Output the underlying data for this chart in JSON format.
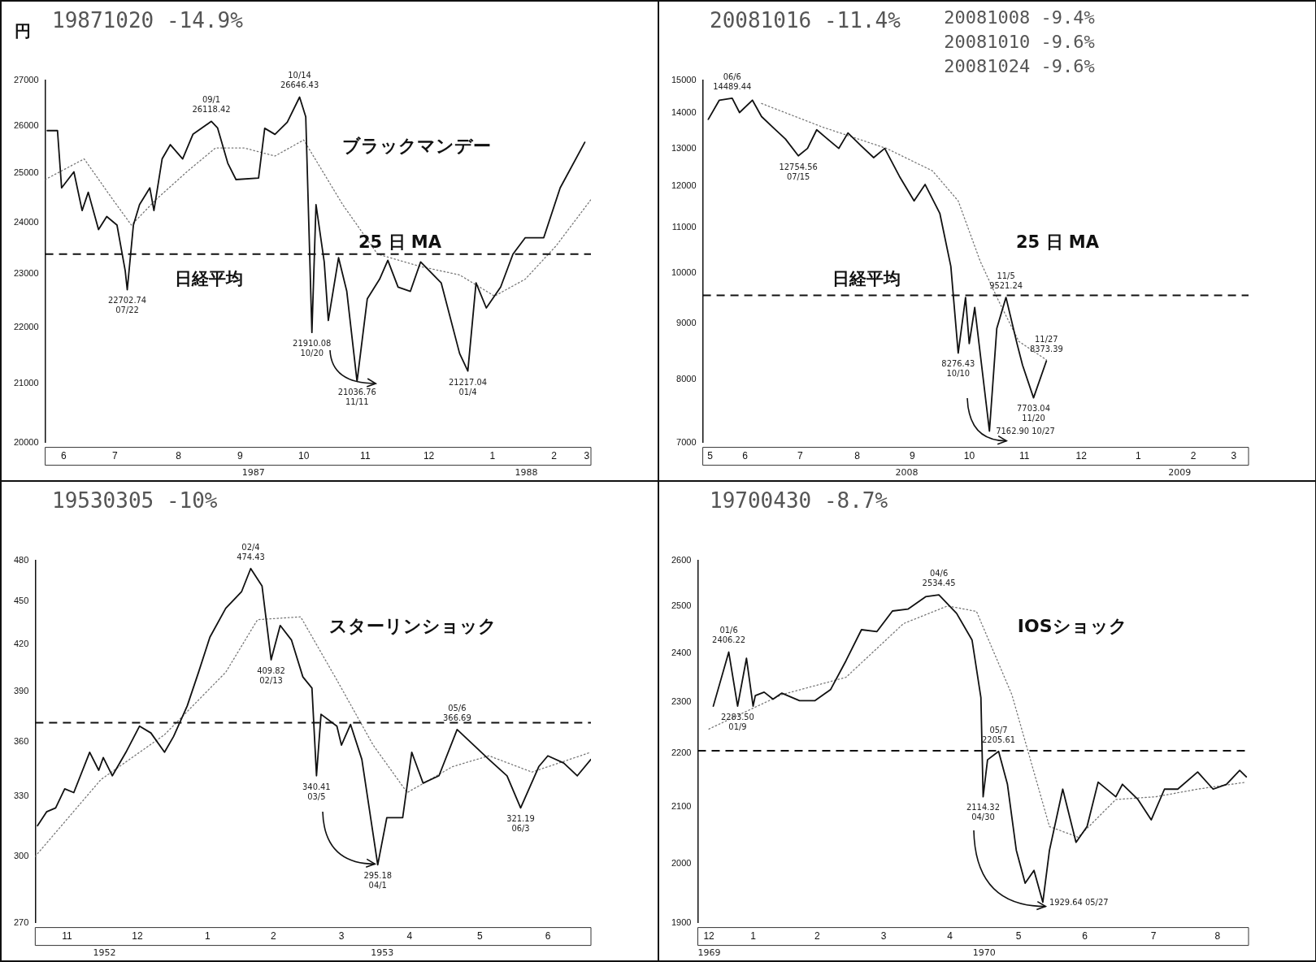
{
  "chart_data": [
    {
      "type": "line",
      "title": "19871020 -14.9%",
      "subtitle": "ブラックマンデー",
      "ylabel": "円",
      "log": true,
      "ylim": [
        20000,
        27000
      ],
      "yticks": [
        20000,
        21000,
        22000,
        23000,
        24000,
        25000,
        26000,
        27000
      ],
      "xlim": [
        "1987-06-12",
        "1988-03-04"
      ],
      "xticks": [
        {
          "value": "1987-06-21",
          "label": "6"
        },
        {
          "value": "1987-07-16",
          "label": "7"
        },
        {
          "value": "1987-08-16",
          "label": "8"
        },
        {
          "value": "1987-09-15",
          "label": "9"
        },
        {
          "value": "1987-10-16",
          "label": "10"
        },
        {
          "value": "1987-11-15",
          "label": "11"
        },
        {
          "value": "1987-12-16",
          "label": "12"
        },
        {
          "value": "1988-01-16",
          "label": "1"
        },
        {
          "value": "1988-02-15",
          "label": "2"
        },
        {
          "value": "1988-03-02",
          "label": "3"
        }
      ],
      "grid": false,
      "legend": false,
      "marker": "none",
      "series": [
        {
          "name": "日経平均",
          "color": "#111111",
          "line_style": "solid",
          "x": [
            "1987-06-13",
            "1987-06-18",
            "1987-06-20",
            "1987-06-26",
            "1987-06-30",
            "1987-07-03",
            "1987-07-08",
            "1987-07-12",
            "1987-07-17",
            "1987-07-21",
            "1987-07-22",
            "1987-07-25",
            "1987-07-28",
            "1987-08-02",
            "1987-08-04",
            "1987-08-08",
            "1987-08-12",
            "1987-08-18",
            "1987-08-23",
            "1987-09-01",
            "1987-09-04",
            "1987-09-09",
            "1987-09-13",
            "1987-09-24",
            "1987-09-27",
            "1987-10-02",
            "1987-10-08",
            "1987-10-14",
            "1987-10-17",
            "1987-10-20",
            "1987-10-22",
            "1987-10-26",
            "1987-10-28",
            "1987-11-02",
            "1987-11-06",
            "1987-11-11",
            "1987-11-16",
            "1987-11-22",
            "1987-11-26",
            "1987-12-01",
            "1987-12-07",
            "1987-12-12",
            "1987-12-22",
            "1987-12-31",
            "1988-01-04",
            "1988-01-08",
            "1988-01-13",
            "1988-01-20",
            "1988-01-26",
            "1988-02-01",
            "1988-02-10",
            "1988-02-18",
            "1988-03-01"
          ],
          "values": [
            25900,
            25900,
            24700,
            25030,
            24240,
            24610,
            23860,
            24120,
            23950,
            23060,
            22700,
            23950,
            24360,
            24700,
            24240,
            25300,
            25600,
            25300,
            25820,
            26100,
            25960,
            25210,
            24870,
            24900,
            25950,
            25820,
            26080,
            26630,
            26200,
            21910,
            24360,
            23230,
            22130,
            23310,
            22670,
            21040,
            22530,
            22900,
            23260,
            22750,
            22670,
            23230,
            22830,
            21530,
            21220,
            22830,
            22360,
            22750,
            23380,
            23700,
            23700,
            24700,
            25650
          ]
        },
        {
          "name": "25 日 MA",
          "color": "#777777",
          "line_style": "dotted",
          "x": [
            "1987-06-12",
            "1987-07-01",
            "1987-07-15",
            "1987-07-24",
            "1987-08-05",
            "1987-08-20",
            "1987-09-03",
            "1987-09-17",
            "1987-10-02",
            "1987-10-16",
            "1987-11-04",
            "1987-11-21",
            "1987-12-12",
            "1987-12-31",
            "1988-01-17",
            "1988-02-01",
            "1988-02-16",
            "1988-03-04"
          ],
          "values": [
            24870,
            25300,
            24460,
            23950,
            24460,
            25030,
            25530,
            25530,
            25360,
            25700,
            24360,
            23380,
            23140,
            22980,
            22580,
            22900,
            23540,
            24460
          ]
        }
      ],
      "ref_lines": [
        {
          "axis": "y",
          "value": 23380,
          "line_style": "dashed",
          "color": "#111111"
        }
      ],
      "annotations": [
        {
          "text": "10/14 26646.43",
          "x": "1987-10-14",
          "y": 26630
        },
        {
          "text": "21910.08 10/20",
          "x": "1987-10-20",
          "y": 21910
        },
        {
          "text": "21036.76 11/11",
          "x": "1987-11-11",
          "y": 21040
        },
        {
          "text": "21217.04 01/4",
          "x": "1988-01-04",
          "y": 21220
        },
        {
          "text": "22702.74 07/22",
          "x": "1987-07-22",
          "y": 22700
        },
        {
          "text": "09/1 26118.42",
          "x": "1987-09-01",
          "y": 26100
        },
        "1987",
        "1988"
      ]
    },
    {
      "type": "line",
      "title": "20081016 -11.4%",
      "log": true,
      "ylim": [
        7000,
        15000
      ],
      "yticks": [
        7000,
        8000,
        9000,
        10000,
        11000,
        12000,
        13000,
        14000,
        15000
      ],
      "xlim": [
        "2008-05-24",
        "2009-03-17"
      ],
      "xticks": [
        {
          "value": "2008-05-28",
          "label": "5"
        },
        {
          "value": "2008-06-16",
          "label": "6"
        },
        {
          "value": "2008-07-16",
          "label": "7"
        },
        {
          "value": "2008-08-16",
          "label": "8"
        },
        {
          "value": "2008-09-15",
          "label": "9"
        },
        {
          "value": "2008-10-16",
          "label": "10"
        },
        {
          "value": "2008-11-15",
          "label": "11"
        },
        {
          "value": "2008-12-16",
          "label": "12"
        },
        {
          "value": "2009-01-16",
          "label": "1"
        },
        {
          "value": "2009-02-15",
          "label": "2"
        },
        {
          "value": "2009-03-09",
          "label": "3"
        }
      ],
      "grid": false,
      "legend": false,
      "marker": "none",
      "series": [
        {
          "name": "日経平均",
          "color": "#111111",
          "line_style": "solid",
          "x": [
            "2008-05-27",
            "2008-06-02",
            "2008-06-09",
            "2008-06-13",
            "2008-06-20",
            "2008-06-25",
            "2008-07-01",
            "2008-07-08",
            "2008-07-15",
            "2008-07-20",
            "2008-07-25",
            "2008-07-30",
            "2008-08-06",
            "2008-08-11",
            "2008-08-18",
            "2008-08-25",
            "2008-08-31",
            "2008-09-08",
            "2008-09-16",
            "2008-09-22",
            "2008-09-30",
            "2008-10-06",
            "2008-10-10",
            "2008-10-14",
            "2008-10-16",
            "2008-10-19",
            "2008-10-27",
            "2008-10-31",
            "2008-11-05",
            "2008-11-11",
            "2008-11-14",
            "2008-11-20",
            "2008-11-27"
          ],
          "values": [
            13820,
            14390,
            14450,
            14020,
            14390,
            13900,
            13600,
            13260,
            12800,
            13000,
            13520,
            13300,
            13000,
            13430,
            13080,
            12750,
            13000,
            12260,
            11640,
            12050,
            11340,
            10140,
            8450,
            9500,
            8620,
            9300,
            7170,
            8900,
            9500,
            8620,
            8240,
            7690,
            8310
          ]
        },
        {
          "name": "25 日 MA",
          "color": "#777777",
          "line_style": "dotted",
          "x": [
            "2008-06-25",
            "2008-07-28",
            "2008-09-01",
            "2008-09-26",
            "2008-10-10",
            "2008-10-22",
            "2008-11-01",
            "2008-11-12",
            "2008-11-27"
          ],
          "values": [
            14290,
            13600,
            13000,
            12400,
            11640,
            10250,
            9430,
            8660,
            8330
          ]
        }
      ],
      "ref_lines": [
        {
          "axis": "y",
          "value": 9540,
          "line_style": "dashed",
          "color": "#111111"
        }
      ],
      "annotations": [
        "20081008 -9.4%",
        "20081010 -9.6%",
        "20081024 -9.6%",
        {
          "text": "06/6 14489.44",
          "x": "2008-06-09",
          "y": 14450
        },
        {
          "text": "7162.90 10/27",
          "x": "2008-10-27",
          "y": 7170
        },
        {
          "text": "11/5 9521.24",
          "x": "2008-11-05",
          "y": 9500
        },
        {
          "text": "8276.43 10/10",
          "x": "2008-10-10",
          "y": 8450
        },
        {
          "text": "7703.04 11/20",
          "x": "2008-11-20",
          "y": 7690
        },
        {
          "text": "12754.56 07/15",
          "x": "2008-07-15",
          "y": 12800
        },
        {
          "text": "11/27 8373.39",
          "x": "2008-11-27",
          "y": 8310
        },
        "2008",
        "2009"
      ]
    },
    {
      "type": "line",
      "title": "19530305 -10%",
      "subtitle": "スターリンショック",
      "log": true,
      "ylim": [
        270,
        480
      ],
      "yticks": [
        270,
        300,
        330,
        360,
        390,
        420,
        450,
        480
      ],
      "xlim": [
        "1952-11-01",
        "1953-07-04"
      ],
      "xticks": [
        {
          "value": "1952-11-15",
          "label": "11"
        },
        {
          "value": "1952-12-16",
          "label": "12"
        },
        {
          "value": "1953-01-16",
          "label": "1"
        },
        {
          "value": "1953-02-14",
          "label": "2"
        },
        {
          "value": "1953-03-16",
          "label": "3"
        },
        {
          "value": "1953-04-15",
          "label": "4"
        },
        {
          "value": "1953-05-16",
          "label": "5"
        },
        {
          "value": "1953-06-15",
          "label": "6"
        }
      ],
      "grid": false,
      "legend": false,
      "marker": "none",
      "series": [
        {
          "color": "#111111",
          "line_style": "solid",
          "x": [
            "1952-11-02",
            "1952-11-06",
            "1952-11-10",
            "1952-11-14",
            "1952-11-18",
            "1952-11-25",
            "1952-11-29",
            "1952-12-01",
            "1952-12-05",
            "1952-12-11",
            "1952-12-17",
            "1952-12-22",
            "1952-12-28",
            "1953-01-01",
            "1953-01-07",
            "1953-01-12",
            "1953-01-17",
            "1953-01-24",
            "1953-01-31",
            "1953-02-04",
            "1953-02-09",
            "1953-02-13",
            "1953-02-17",
            "1953-02-22",
            "1953-02-27",
            "1953-03-03",
            "1953-03-05",
            "1953-03-07",
            "1953-03-14",
            "1953-03-16",
            "1953-03-20",
            "1953-03-25",
            "1953-04-01",
            "1953-04-05",
            "1953-04-12",
            "1953-04-16",
            "1953-04-21",
            "1953-04-28",
            "1953-05-06",
            "1953-05-20",
            "1953-05-28",
            "1953-06-03",
            "1953-06-11",
            "1953-06-15",
            "1953-06-22",
            "1953-06-28",
            "1953-07-04"
          ],
          "values": [
            315,
            322,
            324,
            334,
            332,
            354,
            344,
            351,
            341,
            354,
            369,
            365,
            354,
            363,
            381,
            402,
            425,
            445,
            457,
            474,
            461,
            410,
            433,
            423,
            399,
            392,
            341,
            376,
            369,
            358,
            370,
            350,
            296,
            319,
            319,
            354,
            337,
            341,
            367,
            350,
            341,
            324,
            346,
            352,
            348,
            341,
            350
          ]
        },
        {
          "color": "#777777",
          "line_style": "dotted",
          "x": [
            "1952-11-01",
            "1952-11-30",
            "1952-12-28",
            "1953-01-24",
            "1953-02-07",
            "1953-02-26",
            "1953-03-14",
            "1953-03-30",
            "1953-04-14",
            "1953-05-04",
            "1953-05-20",
            "1953-06-08",
            "1953-07-04"
          ],
          "values": [
            300,
            339,
            364,
            402,
            437,
            439,
            397,
            358,
            332,
            346,
            352,
            343,
            354
          ]
        }
      ],
      "ref_lines": [
        {
          "axis": "y",
          "value": 371,
          "line_style": "dashed",
          "color": "#111111"
        }
      ],
      "annotations": [
        {
          "text": "02/4 474.43",
          "x": "1953-02-04",
          "y": 474
        },
        {
          "text": "295.18 04/1",
          "x": "1953-04-01",
          "y": 296
        },
        {
          "text": "340.41 03/5",
          "x": "1953-03-05",
          "y": 341
        },
        {
          "text": "409.82 02/13",
          "x": "1953-02-13",
          "y": 410
        },
        {
          "text": "05/6 366.69",
          "x": "1953-05-06",
          "y": 367
        },
        {
          "text": "321.19 06/3",
          "x": "1953-06-03",
          "y": 324
        },
        "1952",
        "1953"
      ]
    },
    {
      "type": "line",
      "title": "19700430 -8.7%",
      "subtitle": "IOSショック",
      "log": true,
      "ylim": [
        1900,
        2600
      ],
      "yticks": [
        1900,
        2000,
        2100,
        2200,
        2300,
        2400,
        2500,
        2600
      ],
      "xlim": [
        "1969-12-22",
        "1970-08-28"
      ],
      "xticks": [
        {
          "value": "1969-12-27",
          "label": "12"
        },
        {
          "value": "1970-01-16",
          "label": "1"
        },
        {
          "value": "1970-02-14",
          "label": "2"
        },
        {
          "value": "1970-03-16",
          "label": "3"
        },
        {
          "value": "1970-04-15",
          "label": "4"
        },
        {
          "value": "1970-05-16",
          "label": "5"
        },
        {
          "value": "1970-06-15",
          "label": "6"
        },
        {
          "value": "1970-07-16",
          "label": "7"
        },
        {
          "value": "1970-08-14",
          "label": "8"
        }
      ],
      "grid": false,
      "legend": false,
      "marker": "none",
      "series": [
        {
          "color": "#111111",
          "line_style": "solid",
          "x": [
            "1969-12-29",
            "1970-01-05",
            "1970-01-09",
            "1970-01-13",
            "1970-01-16",
            "1970-01-17",
            "1970-01-21",
            "1970-01-25",
            "1970-01-29",
            "1970-02-06",
            "1970-02-13",
            "1970-02-20",
            "1970-02-27",
            "1970-03-06",
            "1970-03-13",
            "1970-03-20",
            "1970-03-27",
            "1970-04-04",
            "1970-04-10",
            "1970-04-18",
            "1970-04-25",
            "1970-04-29",
            "1970-04-30",
            "1970-05-02",
            "1970-05-07",
            "1970-05-11",
            "1970-05-15",
            "1970-05-19",
            "1970-05-23",
            "1970-05-27",
            "1970-05-30",
            "1970-06-05",
            "1970-06-11",
            "1970-06-16",
            "1970-06-21",
            "1970-06-29",
            "1970-07-02",
            "1970-07-09",
            "1970-07-15",
            "1970-07-21",
            "1970-07-27",
            "1970-08-05",
            "1970-08-12",
            "1970-08-18",
            "1970-08-24",
            "1970-08-27"
          ],
          "values": [
            2292,
            2402,
            2292,
            2389,
            2292,
            2313,
            2320,
            2306,
            2318,
            2303,
            2303,
            2325,
            2384,
            2449,
            2445,
            2489,
            2493,
            2520,
            2524,
            2484,
            2427,
            2309,
            2119,
            2188,
            2204,
            2142,
            2023,
            1966,
            1988,
            1934,
            2023,
            2133,
            2037,
            2065,
            2146,
            2119,
            2142,
            2114,
            2077,
            2133,
            2133,
            2165,
            2133,
            2142,
            2168,
            2156
          ]
        },
        {
          "color": "#777777",
          "line_style": "dotted",
          "x": [
            "1969-12-27",
            "1970-01-29",
            "1970-02-27",
            "1970-03-25",
            "1970-04-14",
            "1970-04-27",
            "1970-05-13",
            "1970-05-30",
            "1970-06-12",
            "1970-06-29",
            "1970-07-17",
            "1970-08-05",
            "1970-08-27"
          ],
          "values": [
            2247,
            2315,
            2350,
            2462,
            2500,
            2488,
            2315,
            2065,
            2046,
            2114,
            2119,
            2133,
            2146
          ]
        }
      ],
      "ref_lines": [
        {
          "axis": "y",
          "value": 2205,
          "line_style": "dashed",
          "color": "#111111"
        }
      ],
      "annotations": [
        {
          "text": "04/6 2534.45",
          "x": "1970-04-10",
          "y": 2524
        },
        {
          "text": "1929.64 05/27",
          "x": "1970-05-27",
          "y": 1934
        },
        {
          "text": "2114.32 04/30",
          "x": "1970-04-30",
          "y": 2119
        },
        {
          "text": "05/7 2205.61",
          "x": "1970-05-07",
          "y": 2204
        },
        {
          "text": "01/6 2406.22",
          "x": "1970-01-05",
          "y": 2402
        },
        {
          "text": "2283.50 01/9",
          "x": "1970-01-09",
          "y": 2292
        },
        "1969",
        "1970"
      ]
    }
  ]
}
